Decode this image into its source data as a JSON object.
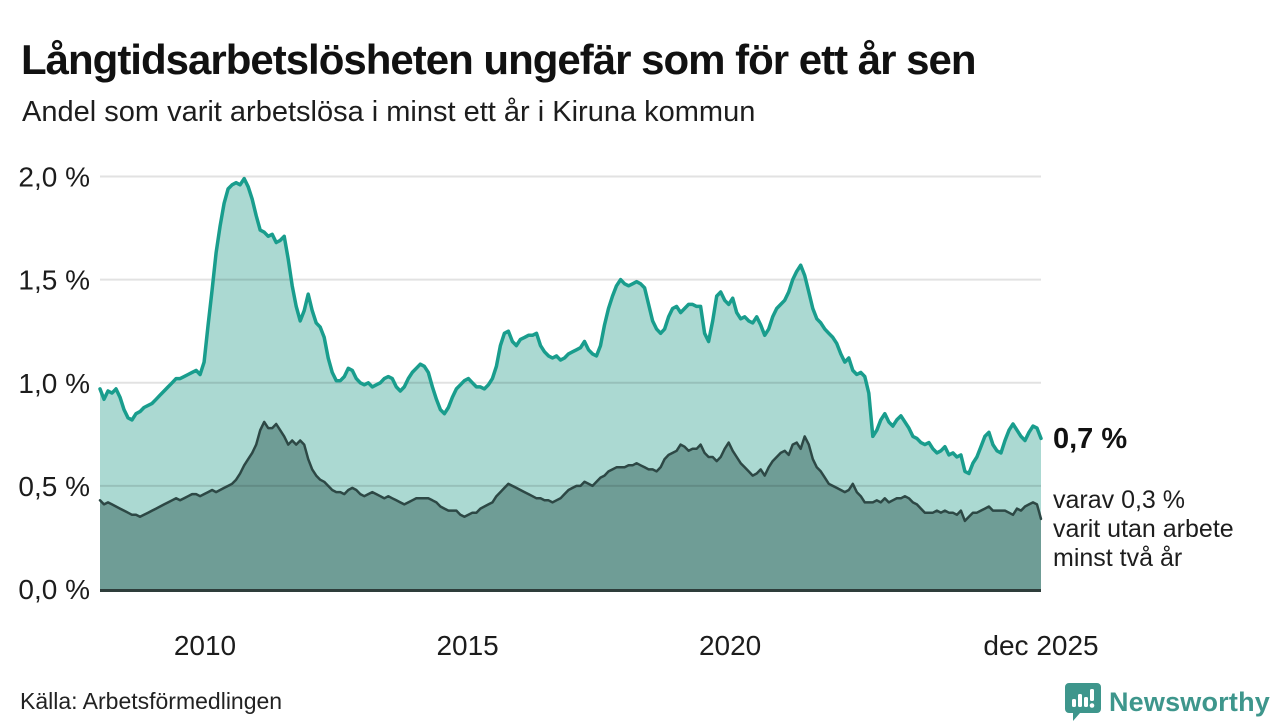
{
  "page": {
    "source": "Källa: Arbetsförmedlingen",
    "brand": "Newsworthy",
    "brand_icon": "bar-chart-speech-bubble-icon"
  },
  "annotations": {
    "total_end_label": "0,7 %",
    "detail_end_label": "varav 0,3 %\nvarit utan arbete\nminst två år"
  },
  "colors": {
    "background": "#ffffff",
    "title_text": "#111111",
    "body_text": "#1d1d1d",
    "gridline": "#e2e2e2",
    "axis_line": "#2e3d3b",
    "total_line": "#199d8d",
    "total_fill": "#abd9d2",
    "detail_line": "#2d4845",
    "detail_fill": "#6f9d96",
    "brand_teal": "#3e968c"
  },
  "chart_data": {
    "type": "area",
    "title": "Långtidsarbetslösheten ungefär som för ett år sen",
    "subtitle": "Andel som varit arbetslösa i minst ett år i Kiruna kommun",
    "source": "Källa: Arbetsförmedlingen",
    "grid": true,
    "legend_position": "end-of-line labels, right side",
    "x_axis": {
      "unit": "decimal year, monthly samples",
      "start": 2008.0,
      "end": 2025.92,
      "ticks": [
        {
          "label": "2010",
          "year": 2010
        },
        {
          "label": "2015",
          "year": 2015
        },
        {
          "label": "2020",
          "year": 2020
        },
        {
          "label": "dec 2025",
          "year": 2025.92
        }
      ]
    },
    "y_axis": {
      "unit": "%",
      "min": 0.0,
      "max": 2.0,
      "ticks": [
        {
          "label": "0,0 %",
          "value": 0.0
        },
        {
          "label": "0,5 %",
          "value": 0.5
        },
        {
          "label": "1,0 %",
          "value": 1.0
        },
        {
          "label": "1,5 %",
          "value": 1.5
        },
        {
          "label": "2,0 %",
          "value": 2.0
        }
      ]
    },
    "series": [
      {
        "name": "Andel arbetslösa minst ett år",
        "end_value_label": "0,7 %",
        "line_color": "#199d8d",
        "fill_color": "#abd9d2",
        "line_width": 3.5,
        "values": [
          0.97,
          0.92,
          0.96,
          0.95,
          0.97,
          0.93,
          0.87,
          0.83,
          0.82,
          0.85,
          0.86,
          0.88,
          0.89,
          0.9,
          0.92,
          0.94,
          0.96,
          0.98,
          1.0,
          1.02,
          1.02,
          1.03,
          1.04,
          1.05,
          1.06,
          1.04,
          1.1,
          1.28,
          1.45,
          1.63,
          1.76,
          1.87,
          1.94,
          1.96,
          1.97,
          1.96,
          1.99,
          1.95,
          1.89,
          1.81,
          1.74,
          1.73,
          1.71,
          1.72,
          1.68,
          1.69,
          1.71,
          1.6,
          1.47,
          1.37,
          1.3,
          1.35,
          1.43,
          1.35,
          1.29,
          1.27,
          1.22,
          1.12,
          1.05,
          1.01,
          1.01,
          1.03,
          1.07,
          1.06,
          1.02,
          1.0,
          0.99,
          1.0,
          0.98,
          0.99,
          1.0,
          1.02,
          1.03,
          1.02,
          0.98,
          0.96,
          0.98,
          1.02,
          1.05,
          1.07,
          1.09,
          1.08,
          1.05,
          0.98,
          0.92,
          0.87,
          0.85,
          0.88,
          0.93,
          0.97,
          0.99,
          1.01,
          1.02,
          1.0,
          0.98,
          0.98,
          0.97,
          0.99,
          1.02,
          1.08,
          1.18,
          1.24,
          1.25,
          1.2,
          1.18,
          1.21,
          1.22,
          1.23,
          1.23,
          1.24,
          1.18,
          1.15,
          1.13,
          1.12,
          1.13,
          1.11,
          1.12,
          1.14,
          1.15,
          1.16,
          1.17,
          1.2,
          1.16,
          1.14,
          1.13,
          1.18,
          1.28,
          1.36,
          1.42,
          1.47,
          1.5,
          1.48,
          1.47,
          1.48,
          1.49,
          1.48,
          1.46,
          1.38,
          1.3,
          1.26,
          1.24,
          1.26,
          1.32,
          1.36,
          1.37,
          1.34,
          1.36,
          1.38,
          1.38,
          1.37,
          1.37,
          1.24,
          1.2,
          1.3,
          1.42,
          1.44,
          1.4,
          1.38,
          1.41,
          1.34,
          1.31,
          1.32,
          1.3,
          1.29,
          1.32,
          1.28,
          1.23,
          1.26,
          1.32,
          1.36,
          1.38,
          1.4,
          1.44,
          1.5,
          1.54,
          1.57,
          1.52,
          1.44,
          1.36,
          1.31,
          1.29,
          1.26,
          1.24,
          1.22,
          1.19,
          1.14,
          1.1,
          1.12,
          1.06,
          1.04,
          1.05,
          1.03,
          0.95,
          0.74,
          0.77,
          0.82,
          0.85,
          0.81,
          0.79,
          0.82,
          0.84,
          0.81,
          0.78,
          0.74,
          0.73,
          0.71,
          0.7,
          0.71,
          0.68,
          0.66,
          0.67,
          0.69,
          0.65,
          0.66,
          0.64,
          0.65,
          0.57,
          0.56,
          0.61,
          0.64,
          0.69,
          0.74,
          0.76,
          0.7,
          0.67,
          0.66,
          0.72,
          0.77,
          0.8,
          0.77,
          0.74,
          0.72,
          0.76,
          0.79,
          0.78,
          0.73
        ]
      },
      {
        "name": "varav varit utan arbete minst två år",
        "end_value_label": "varav 0,3 % varit utan arbete minst två år",
        "line_color": "#2d4845",
        "fill_color": "#6f9d96",
        "line_width": 2.5,
        "values": [
          0.43,
          0.41,
          0.42,
          0.41,
          0.4,
          0.39,
          0.38,
          0.37,
          0.36,
          0.36,
          0.35,
          0.36,
          0.37,
          0.38,
          0.39,
          0.4,
          0.41,
          0.42,
          0.43,
          0.44,
          0.43,
          0.44,
          0.45,
          0.46,
          0.46,
          0.45,
          0.46,
          0.47,
          0.48,
          0.47,
          0.48,
          0.49,
          0.5,
          0.51,
          0.53,
          0.56,
          0.6,
          0.63,
          0.66,
          0.7,
          0.77,
          0.81,
          0.78,
          0.78,
          0.8,
          0.77,
          0.74,
          0.7,
          0.72,
          0.7,
          0.72,
          0.7,
          0.63,
          0.58,
          0.55,
          0.53,
          0.52,
          0.5,
          0.48,
          0.47,
          0.47,
          0.46,
          0.48,
          0.49,
          0.48,
          0.46,
          0.45,
          0.46,
          0.47,
          0.46,
          0.45,
          0.44,
          0.45,
          0.44,
          0.43,
          0.42,
          0.41,
          0.42,
          0.43,
          0.44,
          0.44,
          0.44,
          0.44,
          0.43,
          0.42,
          0.4,
          0.39,
          0.38,
          0.38,
          0.38,
          0.36,
          0.35,
          0.36,
          0.37,
          0.37,
          0.39,
          0.4,
          0.41,
          0.42,
          0.45,
          0.47,
          0.49,
          0.51,
          0.5,
          0.49,
          0.48,
          0.47,
          0.46,
          0.45,
          0.44,
          0.44,
          0.43,
          0.43,
          0.42,
          0.43,
          0.44,
          0.46,
          0.48,
          0.49,
          0.5,
          0.5,
          0.52,
          0.51,
          0.5,
          0.52,
          0.54,
          0.55,
          0.57,
          0.58,
          0.59,
          0.59,
          0.59,
          0.6,
          0.6,
          0.61,
          0.6,
          0.59,
          0.58,
          0.58,
          0.57,
          0.59,
          0.63,
          0.65,
          0.66,
          0.67,
          0.7,
          0.69,
          0.67,
          0.68,
          0.68,
          0.7,
          0.66,
          0.64,
          0.64,
          0.62,
          0.64,
          0.68,
          0.71,
          0.67,
          0.64,
          0.61,
          0.59,
          0.57,
          0.55,
          0.56,
          0.58,
          0.55,
          0.59,
          0.62,
          0.64,
          0.66,
          0.67,
          0.65,
          0.7,
          0.71,
          0.68,
          0.74,
          0.7,
          0.63,
          0.59,
          0.57,
          0.54,
          0.51,
          0.5,
          0.49,
          0.48,
          0.47,
          0.48,
          0.51,
          0.47,
          0.45,
          0.42,
          0.42,
          0.42,
          0.43,
          0.42,
          0.44,
          0.42,
          0.43,
          0.44,
          0.44,
          0.45,
          0.44,
          0.42,
          0.41,
          0.39,
          0.37,
          0.37,
          0.37,
          0.38,
          0.37,
          0.38,
          0.37,
          0.37,
          0.36,
          0.38,
          0.33,
          0.35,
          0.37,
          0.37,
          0.38,
          0.39,
          0.4,
          0.38,
          0.38,
          0.38,
          0.38,
          0.37,
          0.36,
          0.39,
          0.38,
          0.4,
          0.41,
          0.42,
          0.41,
          0.34
        ]
      }
    ]
  }
}
